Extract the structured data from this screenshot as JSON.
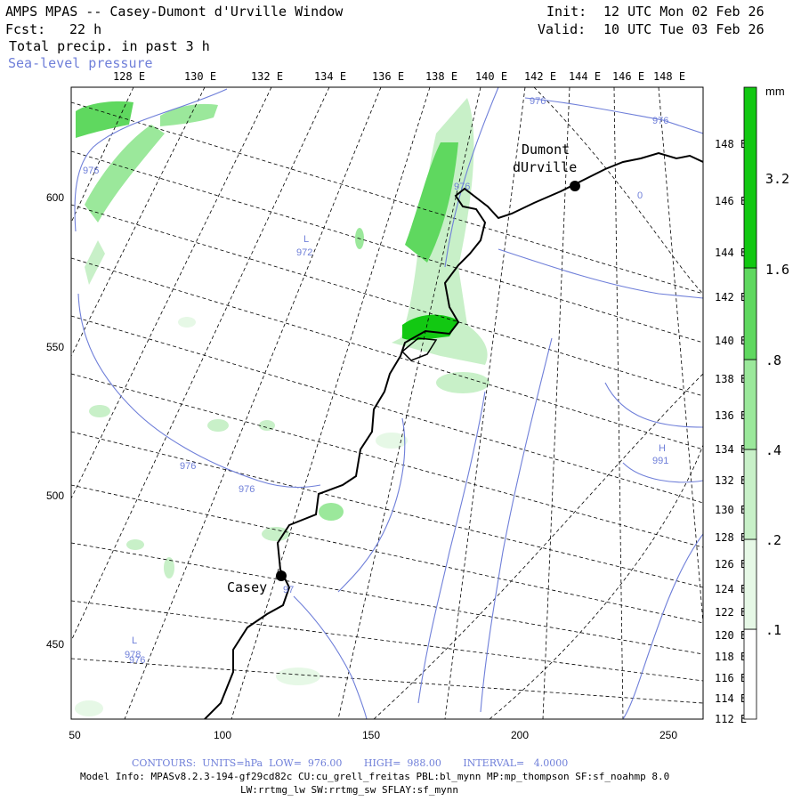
{
  "header": {
    "title": "AMPS MPAS -- Casey-Dumont d'Urville Window",
    "forecast_label": "Fcst:",
    "forecast_value": "22 h",
    "field_label": "Total precip. in past 3 h",
    "overlay_label": "Sea-level pressure",
    "init_label": "Init:",
    "init_value": "12 UTC Mon 02 Feb 26",
    "valid_label": "Valid:",
    "valid_value": "10 UTC Tue 03 Feb 26"
  },
  "axes": {
    "top_longitudes": [
      "128 E",
      "130 E",
      "132 E",
      "134 E",
      "136 E",
      "138 E",
      "140 E",
      "142 E",
      "144 E",
      "146 E",
      "148 E"
    ],
    "right_longitudes": [
      "148 E",
      "146 E",
      "144 E",
      "142 E",
      "140 E",
      "138 E",
      "136 E",
      "134 E",
      "132 E",
      "130 E",
      "128 E",
      "126 E",
      "124 E",
      "122 E",
      "120 E",
      "118 E",
      "116 E",
      "114 E",
      "112 E"
    ],
    "left_grid": [
      "600",
      "550",
      "500",
      "450"
    ],
    "bottom_grid": [
      "50",
      "100",
      "150",
      "200",
      "250"
    ]
  },
  "stations": [
    {
      "name_line1": "Dumont",
      "name_line2": "dUrville"
    },
    {
      "name_line1": "Casey",
      "name_line2": ""
    }
  ],
  "pressure_labels": [
    "976",
    "976",
    "976",
    "976",
    "976",
    "976",
    "976",
    "L",
    "972",
    "H",
    "991",
    "L",
    "978",
    "0",
    "97"
  ],
  "colorbar": {
    "unit": "mm",
    "levels": [
      ".1",
      ".2",
      ".4",
      ".8",
      "1.6",
      "3.2"
    ],
    "colors": [
      "#ffffff",
      "#e6f8e6",
      "#c8f0c8",
      "#9be89b",
      "#5fd85f",
      "#12c812"
    ]
  },
  "footer": {
    "contours": "CONTOURS:  UNITS=hPa  LOW=  976.00       HIGH=  988.00       INTERVAL=   4.0000",
    "model_info_1": "Model Info: MPASv8.2.3-194-gf29cd82c CU:cu_grell_freitas PBL:bl_mynn MP:mp_thompson SF:sf_noahmp 8.0",
    "model_info_2": "LW:rrtmg_lw SW:rrtmg_sw SFLAY:sf_mynn"
  },
  "colors": {
    "contour_blue": "#6f7fd9",
    "coast": "#000000"
  }
}
